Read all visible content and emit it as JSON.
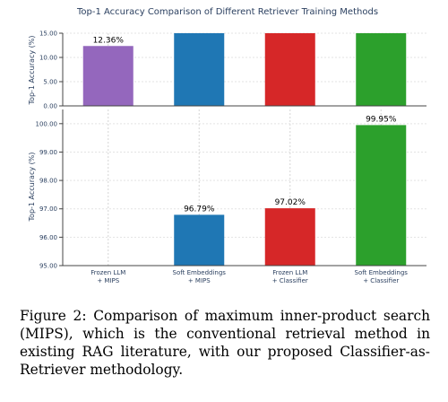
{
  "chart_data": {
    "type": "bar",
    "title": "Top-1 Accuracy Comparison of Different Retriever Training Methods",
    "ylabel": "Top-1 Accuracy (%)",
    "categories": [
      {
        "line1": "Frozen LLM",
        "line2": "+ MIPS"
      },
      {
        "line1": "Soft Embeddings",
        "line2": "+ MIPS"
      },
      {
        "line1": "Frozen LLM",
        "line2": "+ Classifier"
      },
      {
        "line1": "Soft Embeddings",
        "line2": "+ Classifier"
      }
    ],
    "values": [
      12.36,
      96.79,
      97.02,
      99.95
    ],
    "value_labels": [
      "12.36%",
      "96.79%",
      "97.02%",
      "99.95%"
    ],
    "colors": [
      "#9467bd",
      "#1f77b4",
      "#d62728",
      "#2ca02c"
    ],
    "broken_axis": true,
    "panels": [
      {
        "name": "top",
        "ylim": [
          0,
          15
        ],
        "ticks": [
          "0.00",
          "5.00",
          "10.00",
          "15.00"
        ]
      },
      {
        "name": "bottom",
        "ylim": [
          95,
          100.5
        ],
        "ticks": [
          "95.00",
          "96.00",
          "97.00",
          "98.00",
          "99.00",
          "100.00"
        ]
      }
    ],
    "grid": true,
    "legend": "none"
  },
  "caption": "Figure 2: Comparison of maximum inner-product search (MIPS), which is the conventional retrieval method in existing RAG literature, with our proposed Classifier-as-Retriever methodology."
}
